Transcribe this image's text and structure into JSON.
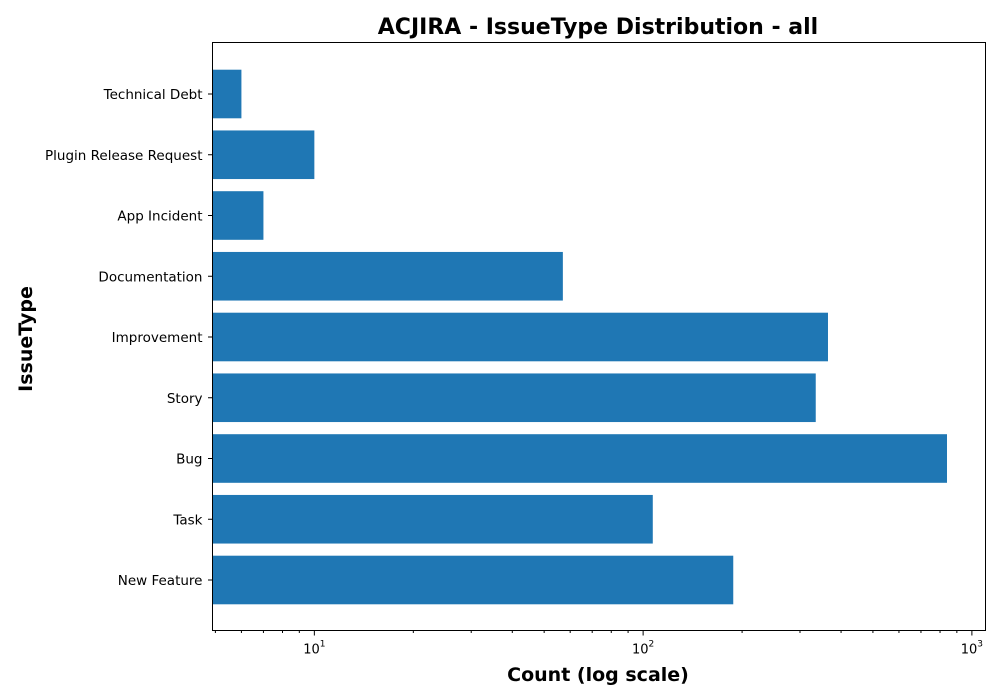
{
  "chart_data": {
    "type": "bar",
    "orientation": "horizontal",
    "title": "ACJIRA - IssueType Distribution - all",
    "xlabel": "Count (log scale)",
    "ylabel": "IssueType",
    "x_scale": "log",
    "xlim": [
      4.9,
      1100
    ],
    "x_ticks": [
      {
        "value": 10,
        "base": "10",
        "exp": "1"
      },
      {
        "value": 100,
        "base": "10",
        "exp": "2"
      },
      {
        "value": 1000,
        "base": "10",
        "exp": "3"
      }
    ],
    "categories": [
      "Technical Debt",
      "Plugin Release Request",
      "App Incident",
      "Documentation",
      "Improvement",
      "Story",
      "Bug",
      "Task",
      "New Feature"
    ],
    "values": [
      6,
      10,
      7,
      57,
      365,
      335,
      840,
      107,
      188
    ],
    "bar_color": "#1f77b4",
    "grid": false,
    "legend": "none"
  }
}
